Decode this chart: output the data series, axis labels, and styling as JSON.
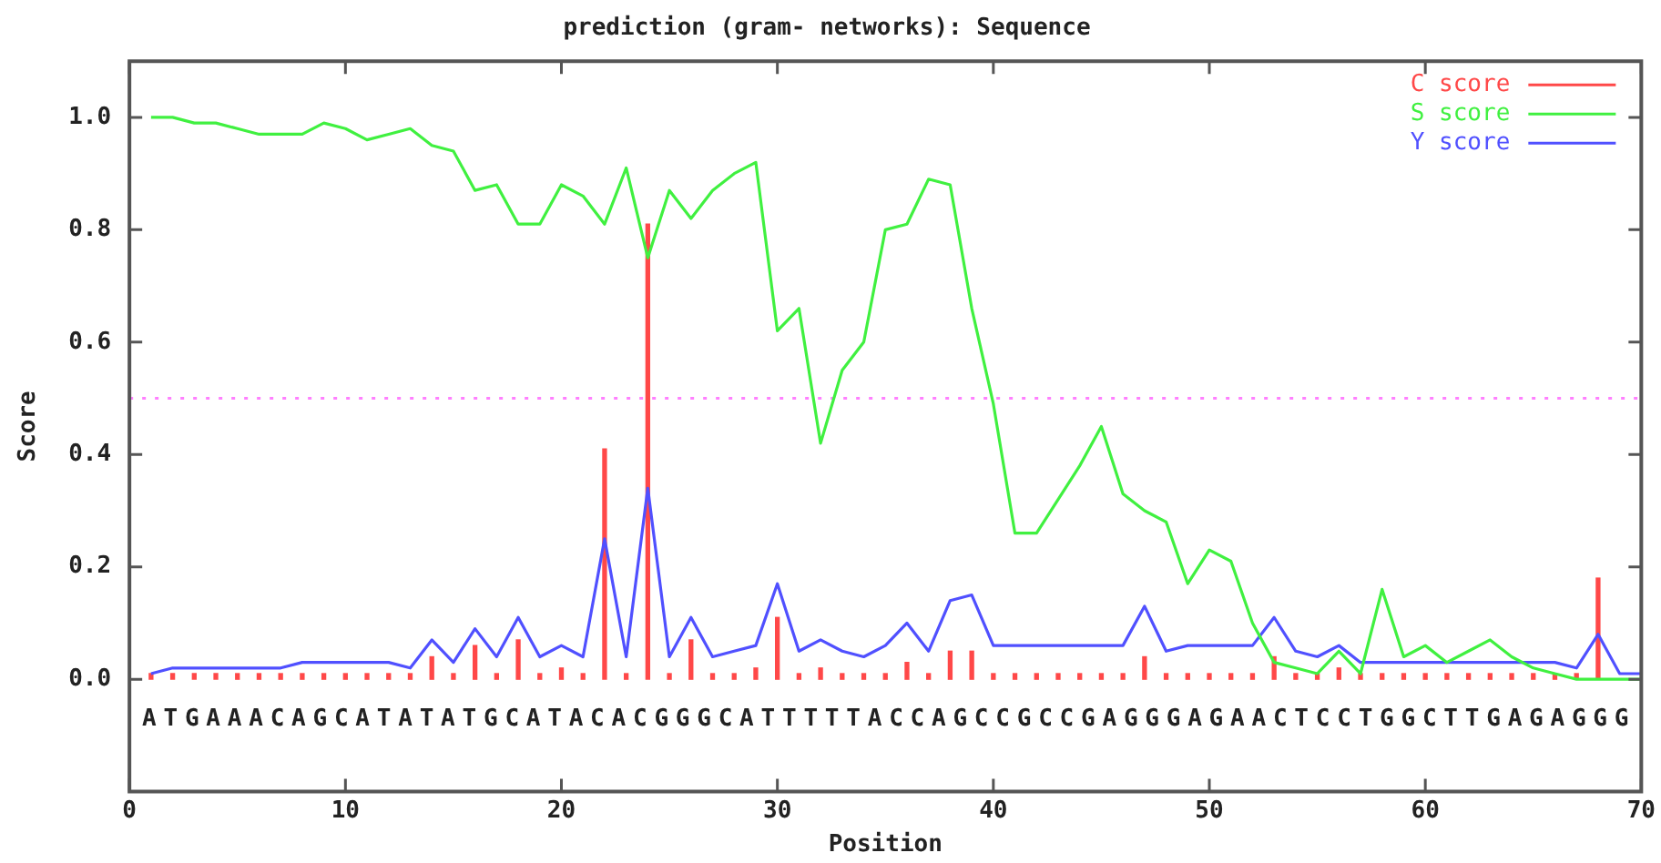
{
  "chart_data": {
    "type": "line",
    "title": "prediction (gram- networks): Sequence",
    "xlabel": "Position",
    "ylabel": "Score",
    "x": [
      1,
      2,
      3,
      4,
      5,
      6,
      7,
      8,
      9,
      10,
      11,
      12,
      13,
      14,
      15,
      16,
      17,
      18,
      19,
      20,
      21,
      22,
      23,
      24,
      25,
      26,
      27,
      28,
      29,
      30,
      31,
      32,
      33,
      34,
      35,
      36,
      37,
      38,
      39,
      40,
      41,
      42,
      43,
      44,
      45,
      46,
      47,
      48,
      49,
      50,
      51,
      52,
      53,
      54,
      55,
      56,
      57,
      58,
      59,
      60,
      61,
      62,
      63,
      64,
      65,
      66,
      67,
      68,
      69,
      70
    ],
    "series": [
      {
        "name": "C score",
        "type": "bar",
        "color": "#ff4848",
        "values": [
          0.01,
          0.01,
          0.01,
          0.01,
          0.01,
          0.01,
          0.01,
          0.01,
          0.01,
          0.01,
          0.01,
          0.01,
          0.01,
          0.04,
          0.01,
          0.06,
          0.01,
          0.07,
          0.01,
          0.02,
          0.01,
          0.41,
          0.01,
          0.81,
          0.01,
          0.07,
          0.01,
          0.01,
          0.02,
          0.11,
          0.01,
          0.02,
          0.01,
          0.01,
          0.01,
          0.03,
          0.01,
          0.05,
          0.05,
          0.01,
          0.01,
          0.01,
          0.01,
          0.01,
          0.01,
          0.01,
          0.04,
          0.01,
          0.01,
          0.01,
          0.01,
          0.01,
          0.04,
          0.01,
          0.01,
          0.02,
          0.01,
          0.01,
          0.01,
          0.01,
          0.01,
          0.01,
          0.01,
          0.01,
          0.01,
          0.01,
          0.01,
          0.18,
          null,
          null
        ]
      },
      {
        "name": "S score",
        "color": "#40f040",
        "values": [
          1.0,
          1.0,
          0.99,
          0.99,
          0.98,
          0.97,
          0.97,
          0.97,
          0.99,
          0.98,
          0.96,
          0.97,
          0.98,
          0.95,
          0.94,
          0.87,
          0.88,
          0.81,
          0.81,
          0.88,
          0.86,
          0.81,
          0.91,
          0.75,
          0.87,
          0.82,
          0.87,
          0.9,
          0.92,
          0.62,
          0.66,
          0.42,
          0.55,
          0.6,
          0.8,
          0.81,
          0.89,
          0.88,
          0.66,
          0.49,
          0.26,
          0.26,
          0.32,
          0.38,
          0.45,
          0.33,
          0.3,
          0.28,
          0.17,
          0.23,
          0.21,
          0.1,
          0.03,
          0.02,
          0.01,
          0.05,
          0.01,
          0.16,
          0.04,
          0.06,
          0.03,
          0.05,
          0.07,
          0.04,
          0.02,
          0.01,
          0.0,
          0.0,
          0.0,
          0.0
        ]
      },
      {
        "name": "Y score",
        "color": "#5050ff",
        "values": [
          0.01,
          0.02,
          0.02,
          0.02,
          0.02,
          0.02,
          0.02,
          0.03,
          0.03,
          0.03,
          0.03,
          0.03,
          0.02,
          0.07,
          0.03,
          0.09,
          0.04,
          0.11,
          0.04,
          0.06,
          0.04,
          0.25,
          0.04,
          0.34,
          0.04,
          0.11,
          0.04,
          0.05,
          0.06,
          0.17,
          0.05,
          0.07,
          0.05,
          0.04,
          0.06,
          0.1,
          0.05,
          0.14,
          0.15,
          0.06,
          0.06,
          0.06,
          0.06,
          0.06,
          0.06,
          0.06,
          0.13,
          0.05,
          0.06,
          0.06,
          0.06,
          0.06,
          0.11,
          0.05,
          0.04,
          0.06,
          0.03,
          0.03,
          0.03,
          0.03,
          0.03,
          0.03,
          0.03,
          0.03,
          0.03,
          0.03,
          0.02,
          0.08,
          0.01,
          0.01
        ]
      }
    ],
    "xlim": [
      0,
      70
    ],
    "xticks": [
      0,
      10,
      20,
      30,
      40,
      50,
      60,
      70
    ],
    "ylim": [
      -0.2,
      1.1
    ],
    "yticks": [
      {
        "value": 0,
        "label": "0.0"
      },
      {
        "value": 0.2,
        "label": "0.2"
      },
      {
        "value": 0.4,
        "label": "0.4"
      },
      {
        "value": 0.6,
        "label": "0.6"
      },
      {
        "value": 0.8,
        "label": "0.8"
      },
      {
        "value": 1,
        "label": "1.0"
      }
    ],
    "ref_lines": [
      {
        "axis": "y",
        "value": 0.5,
        "color": "#ff80ff",
        "line_style": "dotted"
      }
    ],
    "annotations": [
      "ATGAAACAGCATATATGCATACACGGGCATTTTTACCAGCCGCCGAGGGAGAACTCCTGGCTTGAGAGGG"
    ],
    "legend": "top right",
    "grid": false,
    "marker": "none"
  }
}
